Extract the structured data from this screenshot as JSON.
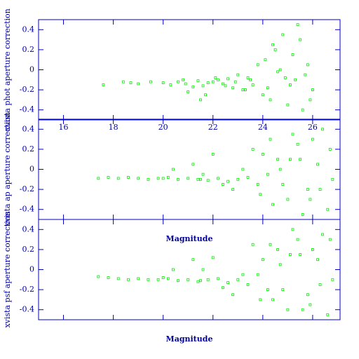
{
  "chart_data": [
    {
      "type": "scatter",
      "y_label": "xvista phot aperture correction",
      "color": "#00ee00",
      "axis_color": "#0000c0",
      "show_xtick_labels": true,
      "xlim": [
        15,
        27.1
      ],
      "ylim": [
        -0.5,
        0.5
      ],
      "xticks": [
        16,
        18,
        20,
        22,
        24,
        26
      ],
      "yticks": [
        -0.4,
        -0.2,
        0,
        0.2,
        0.4
      ],
      "x": [
        19.5,
        20.0,
        20.3,
        20.6,
        20.9,
        21.2,
        21.4,
        21.6,
        21.8,
        22.0,
        22.2,
        22.4,
        22.6,
        22.8,
        23.0,
        23.2,
        23.4,
        23.6,
        23.8,
        24.0,
        24.1,
        24.3,
        24.5,
        24.6,
        24.8,
        25.0,
        25.2,
        25.3,
        25.5,
        25.6,
        25.8,
        26.0,
        21.0,
        21.5,
        22.1,
        22.9,
        23.5,
        24.2,
        24.7,
        25.1,
        25.4,
        25.7,
        20.8,
        21.7,
        22.5,
        23.3,
        24.4,
        24.9,
        25.9,
        18.7,
        19.0,
        18.4,
        17.6
      ],
      "y": [
        -0.12,
        -0.13,
        -0.15,
        -0.12,
        -0.14,
        -0.17,
        -0.11,
        -0.16,
        -0.13,
        -0.12,
        -0.1,
        -0.14,
        -0.09,
        -0.18,
        -0.05,
        -0.2,
        -0.08,
        -0.15,
        0.05,
        -0.25,
        0.1,
        -0.3,
        0.2,
        -0.02,
        0.35,
        -0.35,
        0.15,
        -0.1,
        0.3,
        -0.4,
        0.05,
        -0.2,
        -0.22,
        -0.3,
        -0.08,
        -0.12,
        -0.1,
        -0.18,
        0.0,
        -0.15,
        0.45,
        -0.05,
        -0.1,
        -0.25,
        -0.16,
        -0.2,
        0.25,
        -0.08,
        -0.3,
        -0.13,
        -0.14,
        -0.12,
        -0.15
      ]
    },
    {
      "type": "scatter",
      "x_label": "Magnitude",
      "y_label": "xvista ap aperture correction",
      "color": "#00ee00",
      "axis_color": "#0000c0",
      "show_xtick_labels": false,
      "xlim": [
        15,
        27.1
      ],
      "ylim": [
        -0.5,
        0.5
      ],
      "xticks": [
        16,
        18,
        20,
        22,
        24,
        26
      ],
      "yticks": [
        -0.4,
        -0.2,
        0,
        0.2,
        0.4
      ],
      "x": [
        17.4,
        17.8,
        18.2,
        18.6,
        19.0,
        19.4,
        19.8,
        20.2,
        20.6,
        21.0,
        21.4,
        21.8,
        22.2,
        22.6,
        23.0,
        23.4,
        23.8,
        24.2,
        24.6,
        25.0,
        25.4,
        25.8,
        26.2,
        26.6,
        20.4,
        21.2,
        22.0,
        22.8,
        23.6,
        24.4,
        25.2,
        26.0,
        26.8,
        24.0,
        24.8,
        25.6,
        26.4,
        23.2,
        22.4,
        21.6,
        24.3,
        25.1,
        25.9,
        26.7,
        23.9,
        24.7,
        25.5,
        26.3,
        20.0,
        21.5
      ],
      "y": [
        -0.09,
        -0.08,
        -0.09,
        -0.08,
        -0.09,
        -0.1,
        -0.09,
        -0.08,
        -0.1,
        -0.09,
        -0.1,
        -0.11,
        -0.09,
        -0.12,
        -0.1,
        -0.08,
        -0.15,
        -0.05,
        0.1,
        -0.3,
        0.25,
        -0.2,
        0.05,
        -0.4,
        0.0,
        0.05,
        0.15,
        -0.2,
        0.2,
        -0.35,
        0.35,
        0.3,
        -0.1,
        0.15,
        -0.15,
        -0.45,
        0.4,
        0.0,
        -0.15,
        -0.05,
        0.3,
        0.1,
        -0.3,
        0.2,
        -0.25,
        0.0,
        0.1,
        -0.2,
        -0.09,
        -0.1
      ]
    },
    {
      "type": "scatter",
      "x_label": "Magnitude",
      "y_label": "xvista psf aperture correction",
      "color": "#00ee00",
      "axis_color": "#0000c0",
      "show_xtick_labels": false,
      "xlim": [
        15,
        27.1
      ],
      "ylim": [
        -0.5,
        0.5
      ],
      "xticks": [
        16,
        18,
        20,
        22,
        24,
        26
      ],
      "yticks": [
        -0.4,
        -0.2,
        0,
        0.2,
        0.4
      ],
      "x": [
        17.4,
        17.8,
        18.2,
        18.6,
        19.0,
        19.4,
        19.8,
        20.2,
        20.6,
        21.0,
        21.4,
        21.8,
        22.2,
        22.6,
        23.0,
        23.4,
        23.8,
        24.2,
        24.6,
        25.0,
        25.4,
        25.8,
        26.2,
        26.6,
        20.4,
        21.2,
        22.0,
        22.8,
        23.6,
        24.4,
        25.2,
        26.0,
        26.8,
        24.0,
        24.8,
        25.6,
        26.4,
        23.2,
        22.4,
        21.6,
        24.3,
        25.1,
        25.9,
        26.7,
        23.9,
        24.7,
        25.5,
        26.3,
        20.0,
        21.5
      ],
      "y": [
        -0.07,
        -0.08,
        -0.09,
        -0.1,
        -0.09,
        -0.1,
        -0.1,
        -0.09,
        -0.11,
        -0.1,
        -0.12,
        -0.1,
        -0.09,
        -0.13,
        -0.1,
        -0.15,
        -0.05,
        -0.2,
        0.2,
        -0.4,
        0.3,
        -0.25,
        0.1,
        -0.45,
        0.0,
        0.1,
        0.12,
        -0.25,
        0.25,
        -0.3,
        0.4,
        0.2,
        -0.1,
        0.1,
        -0.2,
        -0.4,
        0.35,
        -0.05,
        -0.18,
        0.0,
        0.25,
        0.15,
        -0.35,
        0.3,
        -0.3,
        0.05,
        0.15,
        -0.15,
        -0.08,
        -0.11
      ]
    }
  ]
}
